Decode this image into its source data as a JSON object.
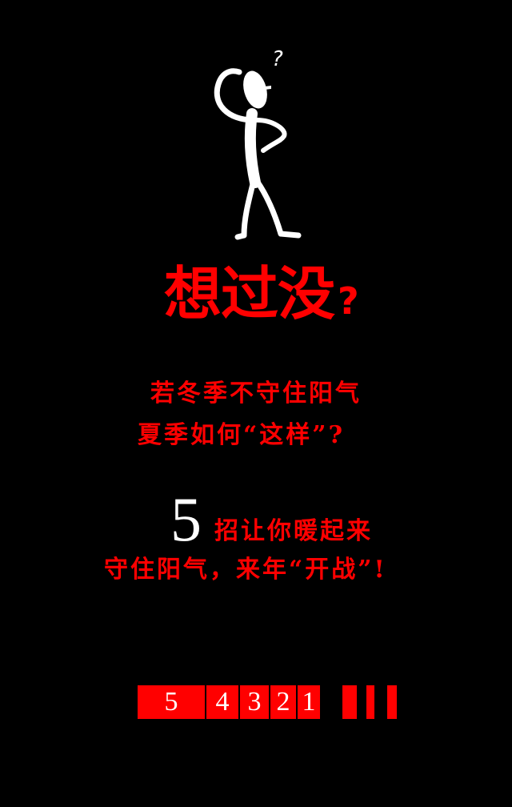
{
  "figure": {
    "icon": "thinking-stick-figure-icon",
    "mark": "?"
  },
  "headline": {
    "main": "想过没",
    "qmark": "?"
  },
  "question": {
    "line1": "若冬季不守住阳气",
    "line2": "夏季如何“这样”?"
  },
  "tips": {
    "number": "5",
    "line1": "招让你暖起来",
    "line2": "守住阳气，来年“开战”!"
  },
  "countdown": {
    "digits": [
      "5",
      "4",
      "3",
      "2",
      "1"
    ],
    "accent_color": "#ff0000"
  },
  "colors": {
    "background": "#000000",
    "accent": "#ff0000",
    "figure": "#ffffff"
  }
}
